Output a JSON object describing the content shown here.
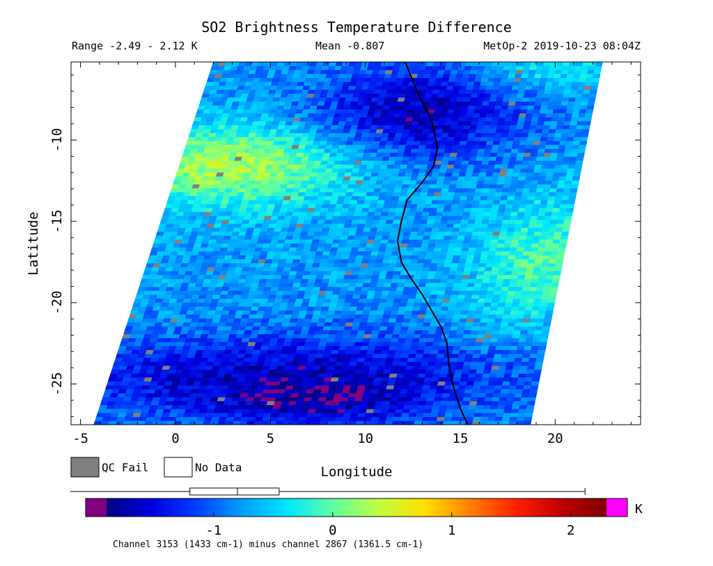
{
  "chart_data": {
    "type": "heatmap",
    "title": "SO2 Brightness Temperature Difference",
    "range_label": "Range -2.49 - 2.12 K",
    "mean_label": "Mean -0.807",
    "satellite_label": "MetOp-2 2019-10-23 08:04Z",
    "xlabel": "Longitude",
    "ylabel": "Latitude",
    "xlim": [
      -5.5,
      24.5
    ],
    "ylim": [
      -27.5,
      -5.2
    ],
    "xticks": [
      -5,
      0,
      5,
      10,
      15,
      20
    ],
    "yticks": [
      -10,
      -15,
      -20,
      -25
    ],
    "swath": {
      "corners": [
        [
          -4.3,
          -27.5
        ],
        [
          2.0,
          -5.2
        ],
        [
          22.5,
          -5.2
        ],
        [
          18.7,
          -27.5
        ]
      ]
    },
    "coastline": [
      [
        12.1,
        -5.2
      ],
      [
        12.8,
        -7.2
      ],
      [
        13.5,
        -8.8
      ],
      [
        13.8,
        -10.5
      ],
      [
        13.6,
        -11.6
      ],
      [
        13.0,
        -12.6
      ],
      [
        12.2,
        -13.7
      ],
      [
        11.9,
        -15.0
      ],
      [
        11.7,
        -16.2
      ],
      [
        11.9,
        -17.5
      ],
      [
        12.4,
        -18.5
      ],
      [
        13.0,
        -19.5
      ],
      [
        13.5,
        -20.5
      ],
      [
        14.0,
        -21.5
      ],
      [
        14.3,
        -22.5
      ],
      [
        14.4,
        -23.8
      ],
      [
        14.6,
        -25.0
      ],
      [
        15.0,
        -26.5
      ],
      [
        15.4,
        -27.5
      ]
    ],
    "field_regions": [
      {
        "region": "north-central",
        "value": -1.6
      },
      {
        "region": "upper-west band",
        "value": 0.3
      },
      {
        "region": "central",
        "value": -0.7
      },
      {
        "region": "south band",
        "value": -1.7
      },
      {
        "region": "east edge",
        "value": 0.5
      }
    ],
    "legend": {
      "qc_fail_label": "QC Fail",
      "no_data_label": "No Data",
      "qc_fail_color": "#808080",
      "no_data_color": "#ffffff"
    },
    "colorbar": {
      "vmin": -1.9,
      "vmax": 2.3,
      "ticks": [
        -1,
        0,
        1,
        2
      ],
      "tick_labels": [
        "-1",
        "0",
        "1",
        "2"
      ],
      "unit": "K",
      "underflow_color": "#800080",
      "overflow_color": "#ff00ff",
      "box_range": [
        -1.2,
        -0.45
      ],
      "box_median": -0.8,
      "whisker_range": [
        -1.9,
        2.12
      ],
      "stops": [
        "#000080",
        "#0000e0",
        "#0040ff",
        "#00a0ff",
        "#00e8ff",
        "#60ff9f",
        "#c0ff40",
        "#ffe000",
        "#ff8000",
        "#ff2000",
        "#c00000",
        "#800000"
      ]
    },
    "footnote": "Channel 3153 (1433 cm-1) minus channel 2867 (1361.5 cm-1)"
  }
}
